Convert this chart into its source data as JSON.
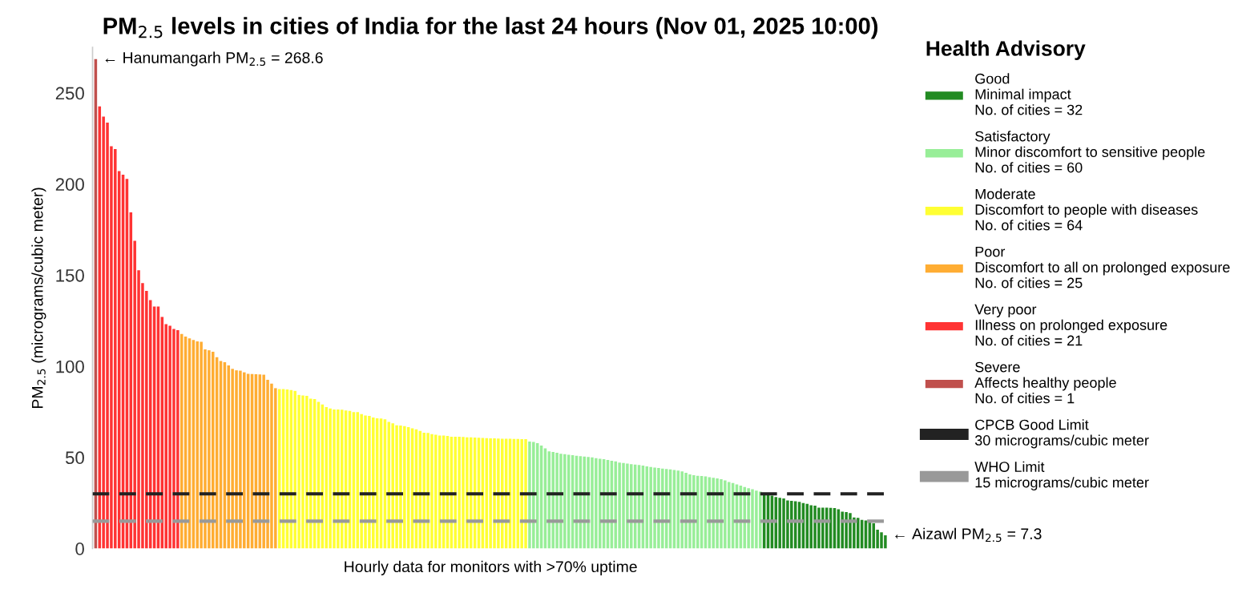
{
  "chart_data": {
    "type": "bar",
    "title": "PM$_{2.5}$ levels in cities of India for the last 24 hours (Nov 01, 2025 10:00)",
    "xlabel": "Hourly data for monitors with >70% uptime",
    "ylabel": "PM$_{2.5}$ (micrograms/cubic meter)",
    "legend_title": "Health Advisory",
    "legend": "right",
    "grid": false,
    "ylim": [
      0,
      275
    ],
    "yticks": [
      0,
      50,
      100,
      150,
      200,
      250
    ],
    "categories": [
      null,
      null,
      null,
      null,
      null,
      null,
      null,
      null,
      null,
      null,
      null,
      null,
      null,
      null,
      null,
      null,
      null,
      null,
      null,
      null,
      null,
      null,
      null,
      null,
      null,
      null,
      null,
      null,
      null,
      null,
      null,
      null,
      null,
      null,
      null,
      null,
      null,
      null,
      null,
      null,
      null,
      null,
      null,
      null,
      null,
      null,
      null,
      null,
      null,
      null,
      null,
      null,
      null,
      null,
      null,
      null,
      null,
      null,
      null,
      null,
      null,
      null,
      null,
      null,
      null,
      null,
      null,
      null,
      null,
      null,
      null,
      null,
      null,
      null,
      null,
      null,
      null,
      null,
      null,
      null,
      null,
      null,
      null,
      null,
      null,
      null,
      null,
      null,
      null,
      null,
      null,
      null,
      null,
      null,
      null,
      null,
      null,
      null,
      null,
      null,
      null,
      null,
      null,
      null,
      null,
      null,
      null,
      null,
      null,
      null,
      null,
      null,
      null,
      null,
      null,
      null,
      null,
      null,
      null,
      null,
      null,
      null,
      null,
      null,
      null,
      null,
      null,
      null,
      null,
      null,
      null,
      null,
      null,
      null,
      null,
      null,
      null,
      null,
      null,
      null,
      null,
      null,
      null,
      null,
      null,
      null,
      null,
      null,
      null,
      null,
      null,
      null,
      null,
      null,
      null,
      null,
      null,
      null,
      null,
      null,
      null,
      null,
      null,
      null,
      null,
      null,
      null,
      null,
      null,
      null,
      null,
      null,
      null,
      null,
      null,
      null,
      null,
      null,
      null,
      null,
      null,
      null,
      null,
      null,
      null,
      null,
      null,
      null,
      null,
      null,
      null,
      null,
      null,
      null,
      null,
      null,
      null,
      null,
      null,
      null,
      null,
      null,
      null
    ],
    "series": [
      {
        "name": "Good\nMinimal impact\nNo. of cities = 32",
        "color": "#228b22",
        "values": [
          null,
          null,
          null,
          null,
          null,
          null,
          null,
          null,
          null,
          null,
          null,
          null,
          null,
          null,
          null,
          null,
          null,
          null,
          null,
          null,
          null,
          null,
          null,
          null,
          null,
          null,
          null,
          null,
          null,
          null,
          null,
          null,
          null,
          null,
          null,
          null,
          null,
          null,
          null,
          null,
          null,
          null,
          null,
          null,
          null,
          null,
          null,
          null,
          null,
          null,
          null,
          null,
          null,
          null,
          null,
          null,
          null,
          null,
          null,
          null,
          null,
          null,
          null,
          null,
          null,
          null,
          null,
          null,
          null,
          null,
          null,
          null,
          null,
          null,
          null,
          null,
          null,
          null,
          null,
          null,
          null,
          null,
          null,
          null,
          null,
          null,
          null,
          null,
          null,
          null,
          null,
          null,
          null,
          null,
          null,
          null,
          null,
          null,
          null,
          null,
          null,
          null,
          null,
          null,
          null,
          null,
          null,
          null,
          null,
          null,
          null,
          null,
          null,
          null,
          null,
          null,
          null,
          null,
          null,
          null,
          null,
          null,
          null,
          null,
          null,
          null,
          null,
          null,
          null,
          null,
          null,
          null,
          null,
          null,
          null,
          null,
          null,
          null,
          null,
          null,
          null,
          null,
          null,
          null,
          null,
          null,
          null,
          null,
          null,
          null,
          null,
          null,
          null,
          null,
          null,
          null,
          null,
          null,
          null,
          null,
          null,
          null,
          null,
          null,
          null,
          null,
          null,
          null,
          null,
          null,
          null,
          30.5,
          29.8,
          29.0,
          28.3,
          27.8,
          27.5,
          26.4,
          26.2,
          25.9,
          25.6,
          25.0,
          24.5,
          23.8,
          23.5,
          22.4,
          22.4,
          22.4,
          22.3,
          22.2,
          21.5,
          20.2,
          20.0,
          19.5,
          17.0,
          16.8,
          15.7,
          15.4,
          14.3,
          13.8,
          10.3,
          8.9,
          7.3
        ]
      },
      {
        "name": "Satisfactory\nMinor discomfort to sensitive people\nNo. of cities = 60",
        "color": "#98ee98",
        "values": [
          null,
          null,
          null,
          null,
          null,
          null,
          null,
          null,
          null,
          null,
          null,
          null,
          null,
          null,
          null,
          null,
          null,
          null,
          null,
          null,
          null,
          null,
          null,
          null,
          null,
          null,
          null,
          null,
          null,
          null,
          null,
          null,
          null,
          null,
          null,
          null,
          null,
          null,
          null,
          null,
          null,
          null,
          null,
          null,
          null,
          null,
          null,
          null,
          null,
          null,
          null,
          null,
          null,
          null,
          null,
          null,
          null,
          null,
          null,
          null,
          null,
          null,
          null,
          null,
          null,
          null,
          null,
          null,
          null,
          null,
          null,
          null,
          null,
          null,
          null,
          null,
          null,
          null,
          null,
          null,
          null,
          null,
          null,
          null,
          null,
          null,
          null,
          null,
          null,
          null,
          null,
          null,
          null,
          null,
          null,
          null,
          null,
          null,
          null,
          null,
          null,
          null,
          null,
          null,
          null,
          null,
          null,
          null,
          null,
          null,
          null,
          58.7,
          58.5,
          57.8,
          56.5,
          55.0,
          53.3,
          53.0,
          52.5,
          52.0,
          51.8,
          51.5,
          51.2,
          50.9,
          50.7,
          50.5,
          50.3,
          50.0,
          49.6,
          49.3,
          49.0,
          48.6,
          48.2,
          47.8,
          47.2,
          47.0,
          46.6,
          46.3,
          46.1,
          45.8,
          45.5,
          45.1,
          44.8,
          44.4,
          44.2,
          43.9,
          43.6,
          43.4,
          43.1,
          42.8,
          42.3,
          41.6,
          40.7,
          40.2,
          39.9,
          39.8,
          39.6,
          39.1,
          38.8,
          38.5,
          38.0,
          37.4,
          36.5,
          35.9,
          35.2,
          34.5,
          33.8,
          33.1,
          32.5,
          31.8,
          31.2,
          null,
          null,
          null,
          null,
          null,
          null,
          null,
          null,
          null,
          null,
          null,
          null,
          null,
          null,
          null,
          null,
          null,
          null,
          null,
          null,
          null,
          null,
          null,
          null,
          null,
          null,
          null,
          null,
          null,
          null,
          null,
          null
        ]
      },
      {
        "name": "Moderate\nDiscomfort to people with diseases\nNo. of cities = 64",
        "color": "#ffff33",
        "values": [
          null,
          null,
          null,
          null,
          null,
          null,
          null,
          null,
          null,
          null,
          null,
          null,
          null,
          null,
          null,
          null,
          null,
          null,
          null,
          null,
          null,
          null,
          null,
          null,
          null,
          null,
          null,
          null,
          null,
          null,
          null,
          null,
          null,
          null,
          null,
          null,
          null,
          null,
          null,
          null,
          null,
          null,
          null,
          null,
          null,
          null,
          null,
          87.5,
          87.5,
          87.3,
          87.0,
          86.5,
          84.3,
          84.0,
          83.8,
          82.2,
          82.0,
          80.5,
          79.0,
          77.6,
          76.8,
          76.3,
          76.3,
          76.2,
          75.8,
          75.5,
          74.9,
          74.9,
          73.8,
          73.0,
          72.8,
          71.9,
          71.5,
          71.4,
          70.9,
          69.5,
          68.7,
          67.6,
          67.5,
          67.2,
          66.6,
          66.0,
          65.4,
          64.5,
          63.6,
          63.4,
          62.8,
          62.5,
          62.0,
          62.0,
          61.8,
          61.4,
          61.4,
          61.3,
          61.2,
          61.0,
          61.0,
          60.9,
          60.8,
          60.7,
          60.6,
          60.5,
          60.5,
          60.4,
          60.3,
          60.2,
          60.2,
          60.1,
          60.1,
          60.0,
          60.0,
          null,
          null,
          null,
          null,
          null,
          null,
          null,
          null,
          null,
          null,
          null,
          null,
          null,
          null,
          null,
          null,
          null,
          null,
          null,
          null,
          null,
          null,
          null,
          null,
          null,
          null,
          null,
          null,
          null,
          null,
          null,
          null,
          null,
          null,
          null,
          null,
          null,
          null,
          null,
          null,
          null,
          null,
          null,
          null,
          null,
          null,
          null,
          null,
          null,
          null,
          null,
          null,
          null,
          null,
          null,
          null,
          null,
          null,
          null,
          null,
          null,
          null,
          null,
          null,
          null,
          null,
          null,
          null,
          null,
          null,
          null,
          null,
          null,
          null,
          null,
          null,
          null,
          null,
          null,
          null,
          null,
          null,
          null,
          null,
          null,
          null,
          null,
          null,
          null,
          null,
          null,
          null
        ]
      },
      {
        "name": "Poor\nDiscomfort to all on prolonged exposure\nNo. of cities = 25",
        "color": "#ffad33",
        "values": [
          null,
          null,
          null,
          null,
          null,
          null,
          null,
          null,
          null,
          null,
          null,
          null,
          null,
          null,
          null,
          null,
          null,
          null,
          null,
          null,
          null,
          null,
          117.7,
          116.3,
          115.3,
          114.5,
          113.7,
          113.5,
          109.3,
          108.8,
          108.0,
          105.0,
          102.9,
          102.3,
          100.5,
          98.6,
          97.8,
          97.6,
          96.7,
          95.9,
          95.8,
          95.6,
          95.5,
          95.4,
          92.6,
          90.5,
          88.0,
          null,
          null,
          null,
          null,
          null,
          null,
          null,
          null,
          null,
          null,
          null,
          null,
          null,
          null,
          null,
          null,
          null,
          null,
          null,
          null,
          null,
          null,
          null,
          null,
          null,
          null,
          null,
          null,
          null,
          null,
          null,
          null,
          null,
          null,
          null,
          null,
          null,
          null,
          null,
          null,
          null,
          null,
          null,
          null,
          null,
          null,
          null,
          null,
          null,
          null,
          null,
          null,
          null,
          null,
          null,
          null,
          null,
          null,
          null,
          null,
          null,
          null,
          null,
          null,
          null,
          null,
          null,
          null,
          null,
          null,
          null,
          null,
          null,
          null,
          null,
          null,
          null,
          null,
          null,
          null,
          null,
          null,
          null,
          null,
          null,
          null,
          null,
          null,
          null,
          null,
          null,
          null,
          null,
          null,
          null,
          null,
          null,
          null,
          null,
          null,
          null,
          null,
          null,
          null,
          null,
          null,
          null,
          null,
          null,
          null,
          null,
          null,
          null,
          null,
          null,
          null,
          null,
          null,
          null,
          null,
          null,
          null,
          null,
          null,
          null,
          null,
          null,
          null,
          null,
          null,
          null,
          null,
          null,
          null,
          null,
          null,
          null,
          null,
          null,
          null,
          null,
          null,
          null,
          null,
          null,
          null,
          null,
          null,
          null,
          null,
          null,
          null,
          null,
          null,
          null,
          null
        ]
      },
      {
        "name": "Very poor\nIllness on prolonged exposure\nNo. of cities = 21",
        "color": "#ff3333",
        "values": [
          null,
          242.7,
          237.0,
          233.8,
          220.8,
          219.2,
          207.1,
          205.2,
          202.8,
          184.5,
          168.9,
          152.7,
          145.7,
          141.4,
          136.3,
          132.8,
          132.8,
          127.1,
          123.1,
          122.3,
          120.5,
          119.8,
          null,
          null,
          null,
          null,
          null,
          null,
          null,
          null,
          null,
          null,
          null,
          null,
          null,
          null,
          null,
          null,
          null,
          null,
          null,
          null,
          null,
          null,
          null,
          null,
          null,
          null,
          null,
          null,
          null,
          null,
          null,
          null,
          null,
          null,
          null,
          null,
          null,
          null,
          null,
          null,
          null,
          null,
          null,
          null,
          null,
          null,
          null,
          null,
          null,
          null,
          null,
          null,
          null,
          null,
          null,
          null,
          null,
          null,
          null,
          null,
          null,
          null,
          null,
          null,
          null,
          null,
          null,
          null,
          null,
          null,
          null,
          null,
          null,
          null,
          null,
          null,
          null,
          null,
          null,
          null,
          null,
          null,
          null,
          null,
          null,
          null,
          null,
          null,
          null,
          null,
          null,
          null,
          null,
          null,
          null,
          null,
          null,
          null,
          null,
          null,
          null,
          null,
          null,
          null,
          null,
          null,
          null,
          null,
          null,
          null,
          null,
          null,
          null,
          null,
          null,
          null,
          null,
          null,
          null,
          null,
          null,
          null,
          null,
          null,
          null,
          null,
          null,
          null,
          null,
          null,
          null,
          null,
          null,
          null,
          null,
          null,
          null,
          null,
          null,
          null,
          null,
          null,
          null,
          null,
          null,
          null,
          null,
          null,
          null,
          null,
          null,
          null,
          null,
          null,
          null,
          null,
          null,
          null,
          null,
          null,
          null,
          null,
          null,
          null,
          null,
          null,
          null,
          null,
          null,
          null,
          null,
          null,
          null,
          null,
          null,
          null,
          null,
          null,
          null,
          null,
          null
        ]
      },
      {
        "name": "Severe\nAffects healthy people\nNo. of cities = 1",
        "color": "#c0504d",
        "values": [
          268.6,
          null,
          null,
          null,
          null,
          null,
          null,
          null,
          null,
          null,
          null,
          null,
          null,
          null,
          null,
          null,
          null,
          null,
          null,
          null,
          null,
          null,
          null,
          null,
          null,
          null,
          null,
          null,
          null,
          null,
          null,
          null,
          null,
          null,
          null,
          null,
          null,
          null,
          null,
          null,
          null,
          null,
          null,
          null,
          null,
          null,
          null,
          null,
          null,
          null,
          null,
          null,
          null,
          null,
          null,
          null,
          null,
          null,
          null,
          null,
          null,
          null,
          null,
          null,
          null,
          null,
          null,
          null,
          null,
          null,
          null,
          null,
          null,
          null,
          null,
          null,
          null,
          null,
          null,
          null,
          null,
          null,
          null,
          null,
          null,
          null,
          null,
          null,
          null,
          null,
          null,
          null,
          null,
          null,
          null,
          null,
          null,
          null,
          null,
          null,
          null,
          null,
          null,
          null,
          null,
          null,
          null,
          null,
          null,
          null,
          null,
          null,
          null,
          null,
          null,
          null,
          null,
          null,
          null,
          null,
          null,
          null,
          null,
          null,
          null,
          null,
          null,
          null,
          null,
          null,
          null,
          null,
          null,
          null,
          null,
          null,
          null,
          null,
          null,
          null,
          null,
          null,
          null,
          null,
          null,
          null,
          null,
          null,
          null,
          null,
          null,
          null,
          null,
          null,
          null,
          null,
          null,
          null,
          null,
          null,
          null,
          null,
          null,
          null,
          null,
          null,
          null,
          null,
          null,
          null,
          null,
          null,
          null,
          null,
          null,
          null,
          null,
          null,
          null,
          null,
          null,
          null,
          null,
          null,
          null,
          null,
          null,
          null,
          null,
          null,
          null,
          null,
          null,
          null,
          null,
          null,
          null,
          null,
          null,
          null,
          null,
          null,
          null
        ]
      }
    ],
    "ref_lines": [
      {
        "axis": "y",
        "value": 30,
        "label": "CPCB Good Limit\n30 micrograms/cubic meter",
        "color": "#222222",
        "line_style": "dashed"
      },
      {
        "axis": "y",
        "value": 15,
        "label": "WHO Limit\n15 micrograms/cubic meter",
        "color": "#999999",
        "line_style": "dashed"
      }
    ],
    "annotations": [
      "← Hanumangarh PM$_{2.5}$ = 268.6",
      "← Aizawl PM$_{2.5}$ = 7.3"
    ]
  }
}
